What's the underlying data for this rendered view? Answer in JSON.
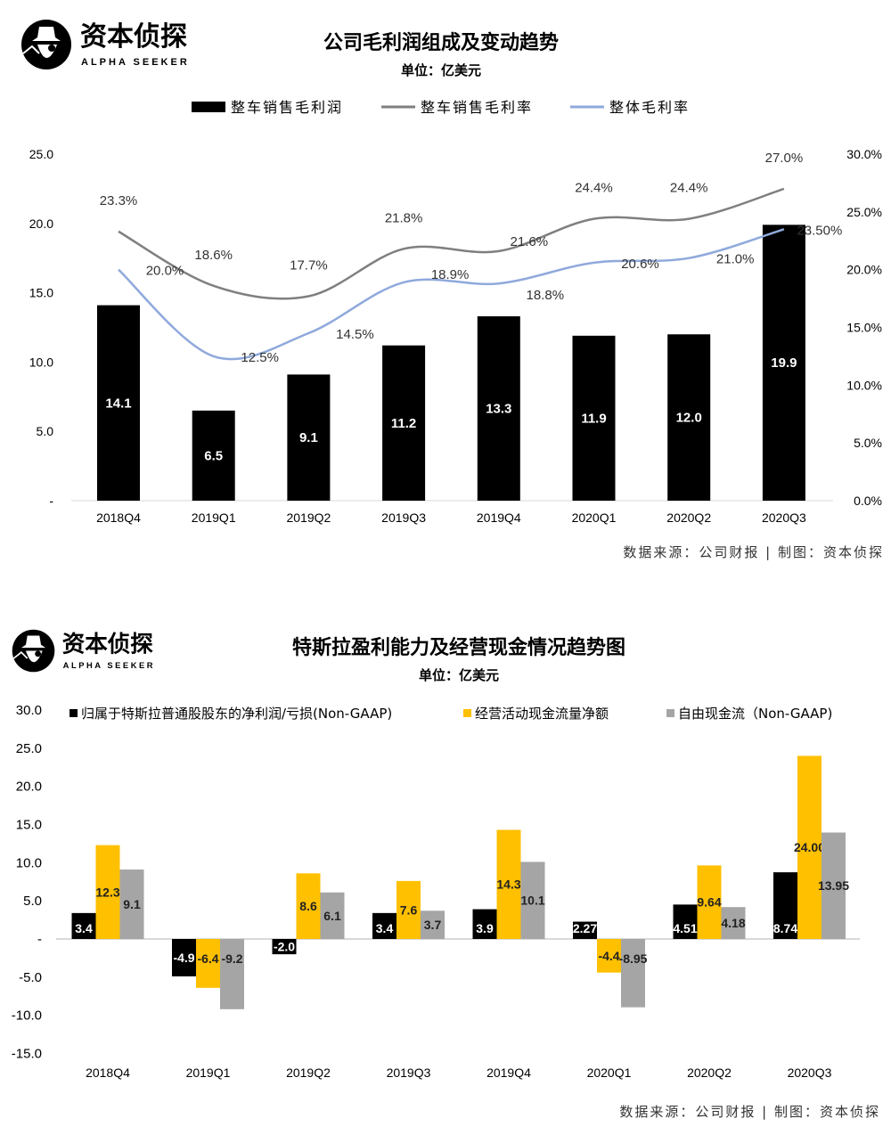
{
  "brand": {
    "name_cn": "资本侦探",
    "name_en": "ALPHA SEEKER"
  },
  "colors": {
    "bar_black": "#000000",
    "auto_line": "#7f7f7f",
    "overall_line": "#8fa9dc",
    "yellow": "#ffc000",
    "gray": "#a5a5a5"
  },
  "chart_data": [
    {
      "type": "bar",
      "title": "公司毛利润组成及变动趋势",
      "subtitle": "单位：亿美元",
      "categories": [
        "2018Q4",
        "2019Q1",
        "2019Q2",
        "2019Q3",
        "2019Q4",
        "2020Q1",
        "2020Q2",
        "2020Q3"
      ],
      "left_axis": {
        "ylim": [
          0,
          25
        ],
        "ticks": [
          "-",
          "5.0",
          "10.0",
          "15.0",
          "20.0",
          "25.0"
        ]
      },
      "right_axis": {
        "ylim": [
          0,
          30
        ],
        "ticks": [
          "0.0%",
          "5.0%",
          "10.0%",
          "15.0%",
          "20.0%",
          "25.0%",
          "30.0%"
        ]
      },
      "legend": [
        "整车销售毛利润",
        "整车销售毛利率",
        "整体毛利率"
      ],
      "legend_position": "top",
      "series": [
        {
          "name": "整车销售毛利润",
          "type": "bar",
          "axis": "left",
          "values": [
            14.1,
            6.5,
            9.1,
            11.2,
            13.3,
            11.9,
            12.0,
            19.9
          ],
          "labels": [
            "14.1",
            "6.5",
            "9.1",
            "11.2",
            "13.3",
            "11.9",
            "12.0",
            "19.9"
          ]
        },
        {
          "name": "整车销售毛利率",
          "type": "line",
          "axis": "right",
          "values": [
            23.3,
            18.6,
            17.7,
            21.8,
            21.6,
            24.4,
            24.4,
            27.0
          ],
          "labels": [
            "23.3%",
            "18.6%",
            "17.7%",
            "21.8%",
            "21.6%",
            "24.4%",
            "24.4%",
            "27.0%"
          ]
        },
        {
          "name": "整体毛利率",
          "type": "line",
          "axis": "right",
          "values": [
            20.0,
            12.5,
            14.5,
            18.9,
            18.8,
            20.6,
            21.0,
            23.5
          ],
          "labels": [
            "20.0%",
            "12.5%",
            "14.5%",
            "18.9%",
            "18.8%",
            "20.6%",
            "21.0%",
            "23.50%"
          ]
        }
      ],
      "source": "数据来源：公司财报 | 制图：资本侦探"
    },
    {
      "type": "bar",
      "title": "特斯拉盈利能力及经营现金情况趋势图",
      "subtitle": "单位：亿美元",
      "categories": [
        "2018Q4",
        "2019Q1",
        "2019Q2",
        "2019Q3",
        "2019Q4",
        "2020Q1",
        "2020Q2",
        "2020Q3"
      ],
      "ylim": [
        -15,
        30
      ],
      "yticks": [
        "-15.0",
        "-10.0",
        "-5.0",
        "-",
        "5.0",
        "10.0",
        "15.0",
        "20.0",
        "25.0",
        "30.0"
      ],
      "legend_position": "top",
      "series": [
        {
          "name": "归属于特斯拉普通股股东的净利润/亏损(Non-GAAP)",
          "values": [
            3.4,
            -4.9,
            -2.0,
            3.4,
            3.9,
            2.27,
            4.51,
            8.74
          ],
          "labels": [
            "3.4",
            "-4.9",
            "-2.0",
            "3.4",
            "3.9",
            "2.27",
            "4.51",
            "8.74"
          ]
        },
        {
          "name": "经营活动现金流量净额",
          "values": [
            12.3,
            -6.4,
            8.6,
            7.6,
            14.3,
            -4.4,
            9.64,
            24.0
          ],
          "labels": [
            "12.3",
            "-6.4",
            "8.6",
            "7.6",
            "14.3",
            "-4.4",
            "9.64",
            "24.00"
          ]
        },
        {
          "name": "自由现金流（Non-GAAP)",
          "values": [
            9.1,
            -9.2,
            6.1,
            3.7,
            10.1,
            -8.95,
            4.18,
            13.95
          ],
          "labels": [
            "9.1",
            "-9.2",
            "6.1",
            "3.7",
            "10.1",
            "-8.95",
            "4.18",
            "13.95"
          ]
        }
      ],
      "source": "数据来源：公司财报 | 制图：资本侦探"
    }
  ]
}
